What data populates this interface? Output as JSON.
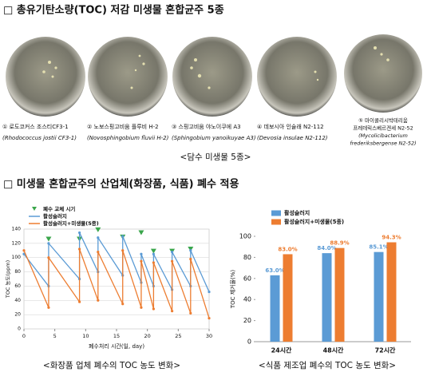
{
  "header": {
    "title": "□ 총유기탄소량(TOC) 저감 미생물 혼합균주 5종"
  },
  "strains": [
    [
      "① 로도코커스 조스티CF3-1",
      "(Rhodococcus jostii CF3-1)"
    ],
    [
      "② 노보스핑고비움 플루비 H-2",
      "(Novosphingobium fluvii H-2)"
    ],
    [
      "③ 스핑고비움 야노이쿠에 A3",
      "(Sphingobium yanoikuyae A3)"
    ],
    [
      "④ 데보시아 인술래 N2-112",
      "(Devosia insulae N2-112)"
    ],
    [
      "⑤ 마이콜리시박테리움",
      "프레데릭스베르겐세 N2-52",
      "(Mycolicibacterium",
      "frederiksbergense N2-52)"
    ]
  ],
  "strains_caption": "<담수 미생물 5종>",
  "section2": {
    "title": "□ 미생물 혼합균주의 산업체(화장품, 식품) 폐수 적용"
  },
  "chart_data": [
    {
      "type": "line",
      "ylabel": "TOC 농도(ppm)",
      "xlabel": "폐수처리 시간(일, day)",
      "caption": "<화장품 업체 폐수의 TOC 농도 변화>",
      "xlim": [
        0,
        30
      ],
      "xticks": [
        0,
        5,
        10,
        15,
        20,
        25,
        30
      ],
      "ylim": [
        0,
        140
      ],
      "yticks": [
        0,
        20,
        40,
        60,
        80,
        100,
        120,
        140
      ],
      "grid": true,
      "series": [
        {
          "name": "폐수 교체 시기",
          "color": "#3aa64b",
          "marker": "triangle",
          "x": [
            4,
            9,
            12,
            16,
            19,
            21,
            24,
            27
          ],
          "values": [
            126,
            126,
            139,
            129,
            135,
            109,
            109,
            112
          ]
        },
        {
          "name": "활성슬러지",
          "color": "#5b9bd5",
          "marker": "circle",
          "x": [
            0,
            4,
            4,
            9,
            9,
            12,
            12,
            16,
            16,
            19,
            19,
            21,
            21,
            24,
            24,
            27,
            27,
            30
          ],
          "values": [
            105,
            60,
            120,
            70,
            135,
            80,
            128,
            75,
            130,
            65,
            105,
            60,
            105,
            55,
            108,
            60,
            110,
            52
          ]
        },
        {
          "name": "활성슬러지+미생물(5종)",
          "color": "#ed7d31",
          "marker": "circle",
          "x": [
            0,
            4,
            4,
            9,
            9,
            12,
            12,
            16,
            16,
            19,
            19,
            21,
            21,
            24,
            24,
            27,
            27,
            30
          ],
          "values": [
            110,
            30,
            100,
            38,
            112,
            40,
            108,
            35,
            110,
            30,
            95,
            28,
            93,
            25,
            95,
            22,
            98,
            15
          ]
        }
      ]
    },
    {
      "type": "bar",
      "ylabel": "TOC 제거율(%)",
      "caption": "<식품 제조업 폐수의 TOC 농도 변화>",
      "categories": [
        "24시간",
        "48시간",
        "72시간"
      ],
      "ylim": [
        0,
        100
      ],
      "yticks": [
        0,
        20,
        40,
        60,
        80,
        100
      ],
      "grid": false,
      "series": [
        {
          "name": "활성슬러지",
          "color": "#5b9bd5",
          "values": [
            63.0,
            84.0,
            85.1
          ],
          "value_labels": [
            "63.0%",
            "84.0%",
            "85.1%"
          ]
        },
        {
          "name": "활성슬러지+미생물(5종)",
          "color": "#ed7d31",
          "values": [
            83.0,
            88.9,
            94.3
          ],
          "value_labels": [
            "83.0%",
            "88.9%",
            "94.3%"
          ]
        }
      ]
    }
  ]
}
